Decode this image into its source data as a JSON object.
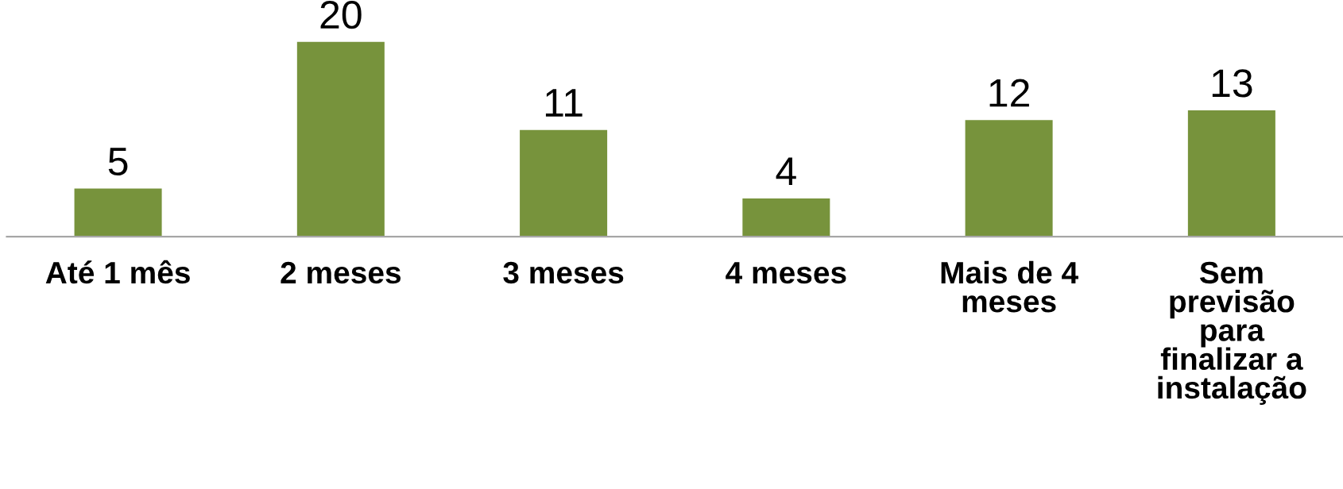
{
  "chart_data": {
    "type": "bar",
    "categories": [
      "Até 1 mês",
      "2 meses",
      "3 meses",
      "4 meses",
      "Mais de 4\nmeses",
      "Sem\nprevisão\npara\nfinalizar a\ninstalação"
    ],
    "values": [
      5,
      20,
      11,
      4,
      12,
      13
    ],
    "color": "#77933c",
    "data_labels": true,
    "grid": false,
    "legend": false,
    "tick_labels": "x"
  }
}
